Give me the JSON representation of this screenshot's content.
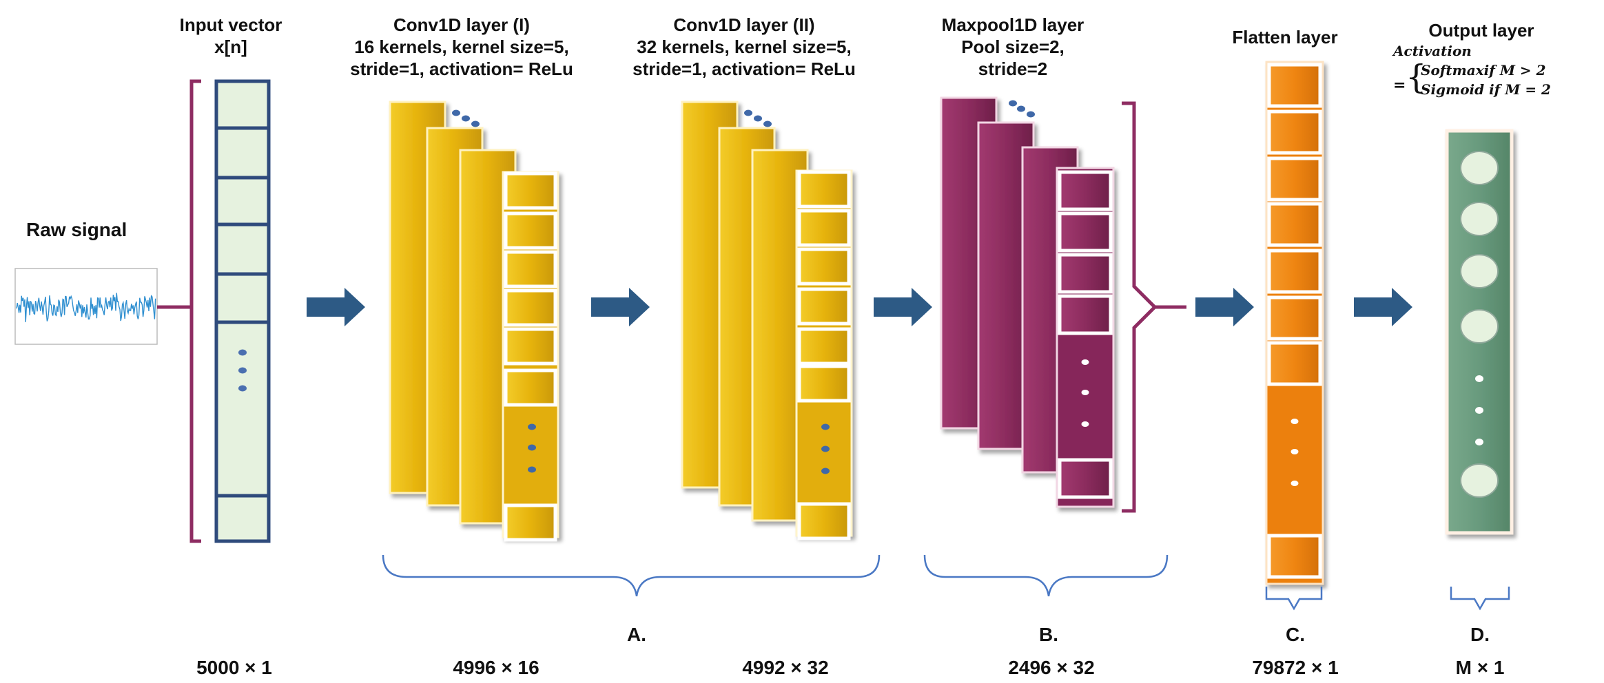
{
  "headers": {
    "input": [
      "Input vector",
      "x[n]"
    ],
    "conv1": [
      "Conv1D layer (I)",
      "16 kernels, kernel size=5,",
      "stride=1, activation= ReLu"
    ],
    "conv2": [
      "Conv1D layer (II)",
      "32 kernels, kernel size=5,",
      "stride=1, activation= ReLu"
    ],
    "maxpool": [
      "Maxpool1D layer",
      "Pool size=2,",
      "stride=2"
    ],
    "flatten": [
      "Flatten layer"
    ],
    "output": [
      "Output layer"
    ]
  },
  "activation": {
    "label": "Activation",
    "eq": "=",
    "case1": "Softmaxif M > 2",
    "case2": "Sigmoid if M = 2"
  },
  "raw_signal_label": "Raw signal",
  "sections": {
    "a": "A.",
    "b": "B.",
    "c": "C.",
    "d": "D."
  },
  "dimensions": {
    "input": "5000 × 1",
    "conv1": "4996 × 16",
    "conv2": "4992 × 32",
    "maxpool": "2496 × 32",
    "flatten": "79872 × 1",
    "output": "M × 1"
  },
  "colors": {
    "input_cell": "#e6f2df",
    "input_border": "#2f4b7c",
    "conv_yellow": "#e9b80e",
    "maxpool_purple": "#8c2c5e",
    "flatten_orange": "#f08a12",
    "output_green": "#6b9b7e",
    "arrow": "#2d5a85",
    "bracket": "#8e2c62",
    "brace_blue": "#4a78c4",
    "signal": "#2f8fd0"
  }
}
